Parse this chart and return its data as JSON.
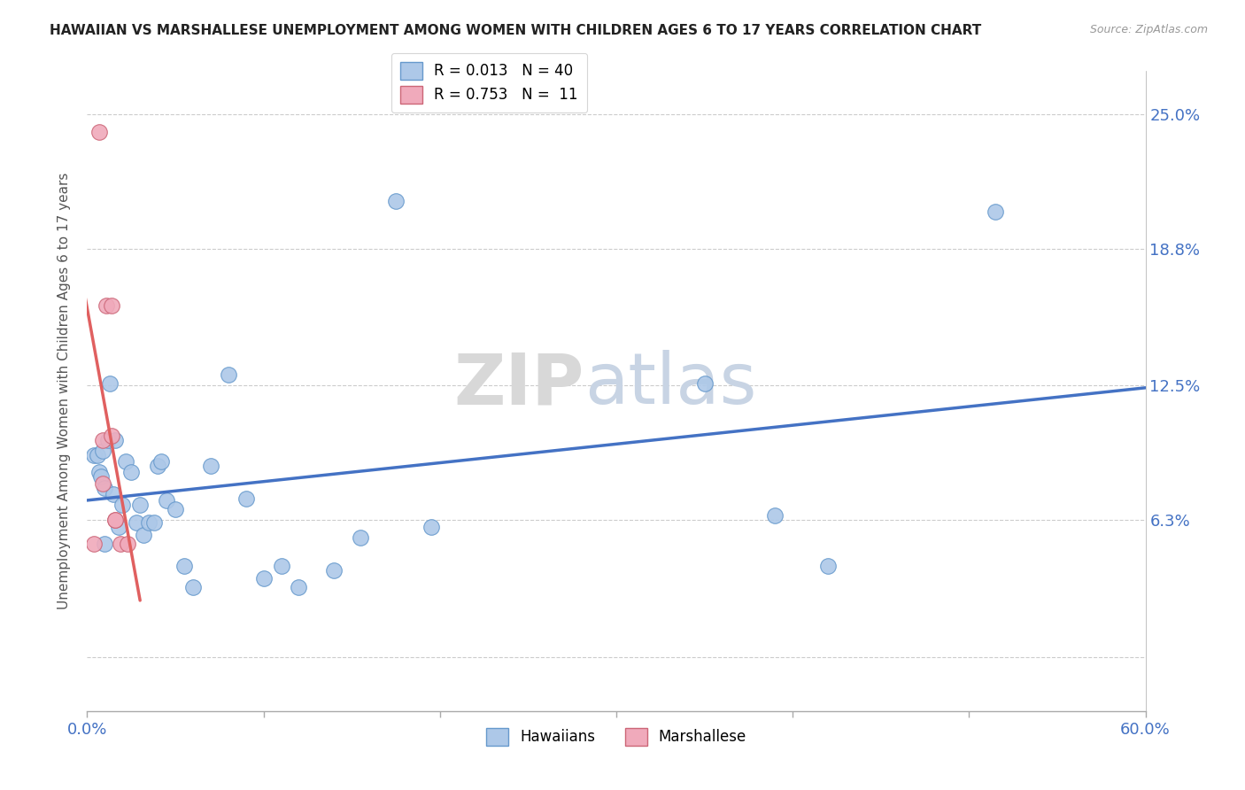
{
  "title": "HAWAIIAN VS MARSHALLESE UNEMPLOYMENT AMONG WOMEN WITH CHILDREN AGES 6 TO 17 YEARS CORRELATION CHART",
  "source": "Source: ZipAtlas.com",
  "ylabel": "Unemployment Among Women with Children Ages 6 to 17 years",
  "ytick_labels": [
    "",
    "6.3%",
    "12.5%",
    "18.8%",
    "25.0%"
  ],
  "ytick_values": [
    0,
    0.063,
    0.125,
    0.188,
    0.25
  ],
  "xlim": [
    0,
    0.6
  ],
  "ylim": [
    -0.025,
    0.27
  ],
  "xtick_positions": [
    0,
    0.1,
    0.2,
    0.3,
    0.4,
    0.5,
    0.6
  ],
  "xtick_labels_show": {
    "0": "0.0%",
    "0.6": "60.0%"
  },
  "hawaiian_R": "0.013",
  "hawaiian_N": "40",
  "marshallese_R": "0.753",
  "marshallese_N": "11",
  "hawaiian_color": "#adc8e8",
  "marshallese_color": "#f0aabb",
  "hawaiian_edge_color": "#6699cc",
  "marshallese_edge_color": "#cc6677",
  "hawaiian_line_color": "#4472c4",
  "marshallese_line_color": "#e06060",
  "watermark_zip": "ZIP",
  "watermark_atlas": "atlas",
  "hawaiian_x": [
    0.004,
    0.006,
    0.007,
    0.008,
    0.009,
    0.01,
    0.01,
    0.012,
    0.013,
    0.015,
    0.016,
    0.018,
    0.02,
    0.022,
    0.025,
    0.028,
    0.03,
    0.032,
    0.035,
    0.038,
    0.04,
    0.042,
    0.045,
    0.05,
    0.055,
    0.06,
    0.07,
    0.08,
    0.09,
    0.1,
    0.11,
    0.12,
    0.14,
    0.155,
    0.175,
    0.195,
    0.35,
    0.39,
    0.42,
    0.515
  ],
  "hawaiian_y": [
    0.093,
    0.093,
    0.085,
    0.083,
    0.095,
    0.078,
    0.052,
    0.1,
    0.126,
    0.075,
    0.1,
    0.06,
    0.07,
    0.09,
    0.085,
    0.062,
    0.07,
    0.056,
    0.062,
    0.062,
    0.088,
    0.09,
    0.072,
    0.068,
    0.042,
    0.032,
    0.088,
    0.13,
    0.073,
    0.036,
    0.042,
    0.032,
    0.04,
    0.055,
    0.21,
    0.06,
    0.126,
    0.065,
    0.042,
    0.205
  ],
  "marshallese_x": [
    0.004,
    0.007,
    0.009,
    0.009,
    0.011,
    0.014,
    0.014,
    0.016,
    0.016,
    0.019,
    0.023
  ],
  "marshallese_y": [
    0.052,
    0.242,
    0.1,
    0.08,
    0.162,
    0.162,
    0.102,
    0.063,
    0.063,
    0.052,
    0.052
  ]
}
